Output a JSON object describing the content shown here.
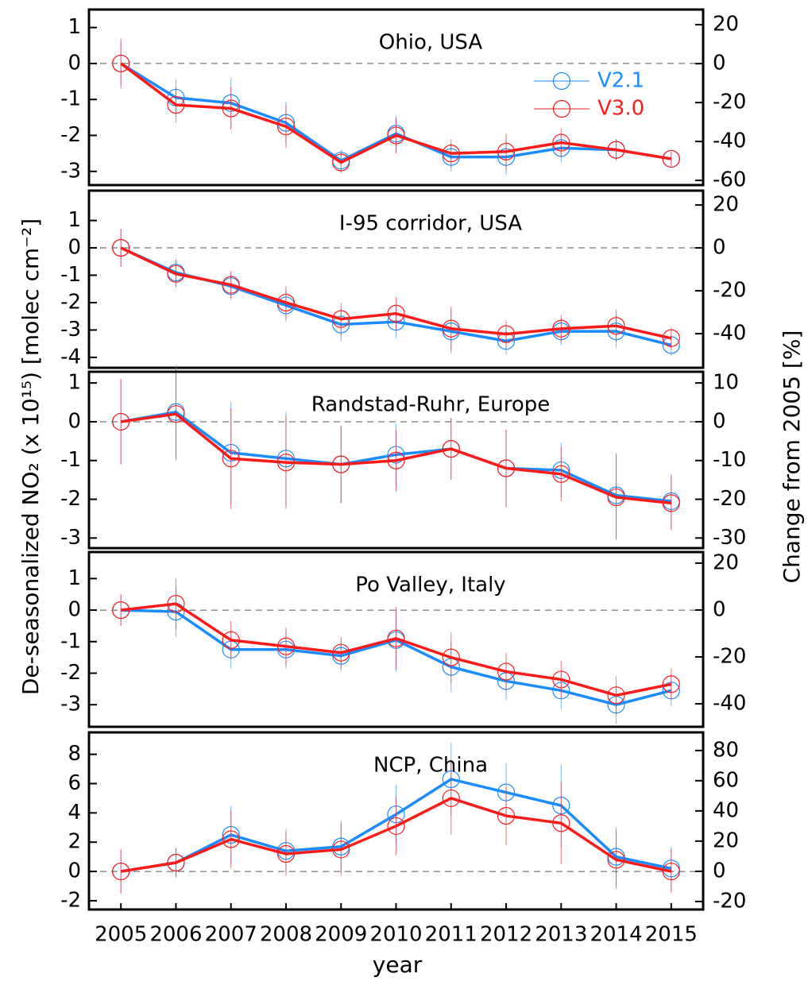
{
  "chart_data": [
    {
      "type": "line",
      "title": "Ohio, USA",
      "x": [
        2005,
        2006,
        2007,
        2008,
        2009,
        2010,
        2011,
        2012,
        2013,
        2014,
        2015
      ],
      "xlim": [
        2004.42,
        2015.58
      ],
      "ylim": [
        -3.38,
        1.5
      ],
      "yticks": [
        1,
        0,
        -1,
        -2,
        -3
      ],
      "y2lim": [
        -62.4,
        27.8
      ],
      "y2ticks": [
        20,
        0,
        -20,
        -40,
        -60
      ],
      "series": [
        {
          "name": "V2.1",
          "color": "#1a8cff",
          "values": [
            0,
            -0.95,
            -1.1,
            -1.65,
            -2.7,
            -1.95,
            -2.6,
            -2.6,
            -2.35,
            -2.4,
            -2.65
          ],
          "errors": [
            0.6,
            0.5,
            0.7,
            0.6,
            0.3,
            0.5,
            0.4,
            0.5,
            0.4,
            0.3,
            0.2
          ]
        },
        {
          "name": "V3.0",
          "color": "#ff1a1a",
          "values": [
            0,
            -1.15,
            -1.25,
            -1.75,
            -2.75,
            -2.0,
            -2.5,
            -2.45,
            -2.2,
            -2.4,
            -2.65
          ],
          "errors": [
            0.7,
            0.5,
            0.6,
            0.6,
            0.3,
            0.5,
            0.4,
            0.5,
            0.4,
            0.3,
            0.2
          ]
        }
      ]
    },
    {
      "type": "line",
      "title": "I-95 corridor, USA",
      "x": [
        2005,
        2006,
        2007,
        2008,
        2009,
        2010,
        2011,
        2012,
        2013,
        2014,
        2015
      ],
      "xlim": [
        2004.42,
        2015.58
      ],
      "ylim": [
        -4.38,
        2.09
      ],
      "yticks": [
        1,
        0,
        -1,
        -2,
        -3,
        -4
      ],
      "y2lim": [
        -55.9,
        26.7
      ],
      "y2ticks": [
        20,
        0,
        -20,
        -40
      ],
      "series": [
        {
          "color": "#1a8cff",
          "values": [
            0,
            -0.9,
            -1.4,
            -2.1,
            -2.8,
            -2.7,
            -3.05,
            -3.4,
            -3.05,
            -3.05,
            -3.55
          ],
          "errors": [
            0.7,
            0.5,
            0.5,
            0.6,
            0.6,
            0.6,
            0.8,
            0.5,
            0.5,
            0.6,
            0.4
          ]
        },
        {
          "color": "#ff1a1a",
          "values": [
            0,
            -0.95,
            -1.35,
            -2.0,
            -2.6,
            -2.4,
            -2.95,
            -3.15,
            -2.95,
            -2.85,
            -3.3
          ],
          "errors": [
            0.7,
            0.5,
            0.5,
            0.6,
            0.6,
            0.6,
            0.8,
            0.5,
            0.5,
            0.6,
            0.4
          ]
        }
      ]
    },
    {
      "type": "line",
      "title": "Randstad-Ruhr, Europe",
      "ylabel": "De-seasonalized NO₂ (x 10¹⁵) [molec cm⁻²]",
      "y2label": "Change from 2005 [%]",
      "x": [
        2005,
        2006,
        2007,
        2008,
        2009,
        2010,
        2011,
        2012,
        2013,
        2014,
        2015
      ],
      "xlim": [
        2004.42,
        2015.58
      ],
      "ylim": [
        -3.26,
        1.29
      ],
      "yticks": [
        1,
        0,
        -1,
        -2,
        -3
      ],
      "y2lim": [
        -32.6,
        12.9
      ],
      "y2ticks": [
        10,
        0,
        -10,
        -20,
        -30
      ],
      "series": [
        {
          "color": "#1a8cff",
          "values": [
            0,
            0.25,
            -0.8,
            -0.95,
            -1.1,
            -0.85,
            -0.7,
            -1.2,
            -1.25,
            -1.9,
            -2.05
          ],
          "errors": [
            1.1,
            1.2,
            1.3,
            1.2,
            1.0,
            0.8,
            0.8,
            1.0,
            0.7,
            1.1,
            0.7
          ]
        },
        {
          "color": "#ff1a1a",
          "values": [
            0,
            0.2,
            -0.95,
            -1.05,
            -1.1,
            -1.0,
            -0.7,
            -1.2,
            -1.35,
            -1.95,
            -2.1
          ],
          "errors": [
            1.1,
            1.2,
            1.3,
            1.2,
            1.0,
            0.8,
            0.8,
            1.0,
            0.7,
            1.1,
            0.7
          ]
        }
      ]
    },
    {
      "type": "line",
      "title": "Po Valley, Italy",
      "x": [
        2005,
        2006,
        2007,
        2008,
        2009,
        2010,
        2011,
        2012,
        2013,
        2014,
        2015
      ],
      "xlim": [
        2004.42,
        2015.58
      ],
      "ylim": [
        -3.7,
        1.84
      ],
      "yticks": [
        1,
        0,
        -1,
        -2,
        -3
      ],
      "y2lim": [
        -49.8,
        24.7
      ],
      "y2ticks": [
        20,
        0,
        -20,
        -40
      ],
      "series": [
        {
          "color": "#1a8cff",
          "values": [
            0,
            -0.05,
            -1.25,
            -1.25,
            -1.45,
            -0.95,
            -1.8,
            -2.25,
            -2.55,
            -3.0,
            -2.55
          ],
          "errors": [
            0.5,
            0.8,
            0.6,
            0.6,
            0.5,
            1.0,
            0.8,
            0.6,
            0.6,
            0.6,
            0.5
          ]
        },
        {
          "color": "#ff1a1a",
          "values": [
            0,
            0.2,
            -0.95,
            -1.15,
            -1.35,
            -0.9,
            -1.5,
            -1.95,
            -2.2,
            -2.7,
            -2.35
          ],
          "errors": [
            0.5,
            0.8,
            0.6,
            0.6,
            0.5,
            1.0,
            0.8,
            0.6,
            0.6,
            0.6,
            0.5
          ]
        }
      ]
    },
    {
      "type": "line",
      "title": "NCP, China",
      "xlabel": "year",
      "x": [
        2005,
        2006,
        2007,
        2008,
        2009,
        2010,
        2011,
        2012,
        2013,
        2014,
        2015
      ],
      "xlim": [
        2004.42,
        2015.58
      ],
      "xticks": [
        2005,
        2006,
        2007,
        2008,
        2009,
        2010,
        2011,
        2012,
        2013,
        2014,
        2015
      ],
      "ylim": [
        -2.6,
        9.5
      ],
      "yticks": [
        8,
        6,
        4,
        2,
        0,
        -2
      ],
      "y2lim": [
        -25.3,
        92
      ],
      "y2ticks": [
        80,
        60,
        40,
        20,
        0,
        -20
      ],
      "series": [
        {
          "color": "#1a8cff",
          "values": [
            0,
            0.6,
            2.5,
            1.4,
            1.7,
            3.9,
            6.3,
            5.4,
            4.5,
            1.0,
            0.2
          ],
          "errors": [
            1.5,
            1.0,
            2.0,
            1.5,
            1.8,
            2.0,
            2.5,
            2.0,
            2.8,
            2.0,
            1.5
          ]
        },
        {
          "color": "#ff1a1a",
          "values": [
            0,
            0.6,
            2.2,
            1.2,
            1.5,
            3.1,
            5.0,
            3.8,
            3.3,
            0.8,
            0.0
          ],
          "errors": [
            1.5,
            1.0,
            2.0,
            1.5,
            1.8,
            2.0,
            2.5,
            2.0,
            2.8,
            2.0,
            1.5
          ]
        }
      ]
    }
  ]
}
